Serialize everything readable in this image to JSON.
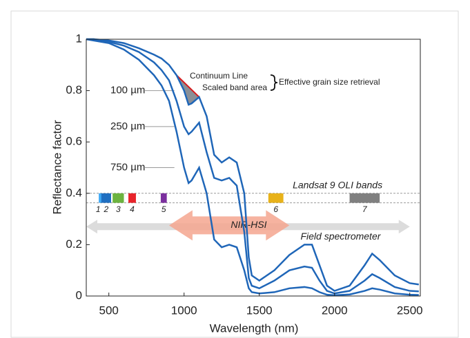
{
  "chart_data": {
    "type": "line",
    "xlabel": "Wavelength (nm)",
    "ylabel": "Reflectance factor",
    "x": [
      350,
      400,
      500,
      600,
      700,
      800,
      850,
      900,
      950,
      1000,
      1030,
      1050,
      1100,
      1150,
      1200,
      1250,
      1300,
      1350,
      1400,
      1430,
      1450,
      1500,
      1600,
      1700,
      1800,
      1850,
      1900,
      1950,
      2000,
      2100,
      2200,
      2250,
      2300,
      2400,
      2500,
      2560
    ],
    "series": [
      {
        "name": "100 µm",
        "color": "#1f66b8",
        "values": [
          1,
          1,
          0.995,
          0.985,
          0.965,
          0.94,
          0.925,
          0.9,
          0.86,
          0.8,
          0.745,
          0.75,
          0.775,
          0.7,
          0.55,
          0.52,
          0.54,
          0.52,
          0.4,
          0.15,
          0.08,
          0.06,
          0.1,
          0.16,
          0.2,
          0.2,
          0.12,
          0.04,
          0.02,
          0.04,
          0.12,
          0.165,
          0.14,
          0.08,
          0.05,
          0.045
        ]
      },
      {
        "name": "250 µm",
        "color": "#1f66b8",
        "values": [
          1,
          1,
          0.99,
          0.975,
          0.95,
          0.91,
          0.88,
          0.84,
          0.76,
          0.66,
          0.63,
          0.64,
          0.675,
          0.56,
          0.46,
          0.45,
          0.46,
          0.43,
          0.25,
          0.07,
          0.04,
          0.03,
          0.06,
          0.1,
          0.115,
          0.11,
          0.06,
          0.02,
          0.01,
          0.02,
          0.06,
          0.085,
          0.07,
          0.035,
          0.02,
          0.018
        ]
      },
      {
        "name": "750 µm",
        "color": "#1f66b8",
        "values": [
          1,
          0.995,
          0.985,
          0.96,
          0.92,
          0.86,
          0.82,
          0.76,
          0.64,
          0.5,
          0.44,
          0.45,
          0.5,
          0.4,
          0.22,
          0.19,
          0.2,
          0.19,
          0.1,
          0.03,
          0.015,
          0.01,
          0.015,
          0.03,
          0.035,
          0.03,
          0.015,
          0.005,
          0.003,
          0.006,
          0.02,
          0.03,
          0.025,
          0.01,
          0.005,
          0.004
        ]
      }
    ],
    "xlim": [
      350,
      2570
    ],
    "ylim": [
      0,
      1
    ],
    "xticks": [
      500,
      1000,
      1500,
      2000,
      2500
    ],
    "yticks": [
      0,
      0.2,
      0.4,
      0.6,
      0.8,
      1
    ],
    "continuum": {
      "label": "Continuum Line",
      "area_label": "Scaled band area",
      "retrieval_label": "Effective grain size retrieval",
      "range": [
        950,
        1100
      ],
      "color": "#d7191c",
      "area_color": "#8a8f96"
    },
    "landsat": {
      "label": "Landsat 9 OLI bands",
      "ylim": [
        0.363,
        0.4
      ],
      "bands": [
        {
          "label": "1",
          "range": [
            433,
            453
          ],
          "color": "#3fa9f5"
        },
        {
          "label": "2",
          "range": [
            450,
            515
          ],
          "color": "#1f6fc1"
        },
        {
          "label": "3",
          "range": [
            525,
            600
          ],
          "color": "#6cb33f"
        },
        {
          "label": "4",
          "range": [
            630,
            680
          ],
          "color": "#e8242b"
        },
        {
          "label": "5",
          "range": [
            845,
            885
          ],
          "color": "#7b2f9e"
        },
        {
          "label": "6",
          "range": [
            1560,
            1660
          ],
          "color": "#e8b21a"
        },
        {
          "label": "7",
          "range": [
            2100,
            2300
          ],
          "color": "#808080"
        }
      ]
    },
    "ranges": [
      {
        "label": "Field spectrometer",
        "range": [
          350,
          2500
        ],
        "y": 0.27,
        "color": "#dcdcdc"
      },
      {
        "label": "NIR-HSI",
        "range": [
          900,
          1700
        ],
        "y": 0.275,
        "color": "#f4a68f"
      }
    ]
  }
}
